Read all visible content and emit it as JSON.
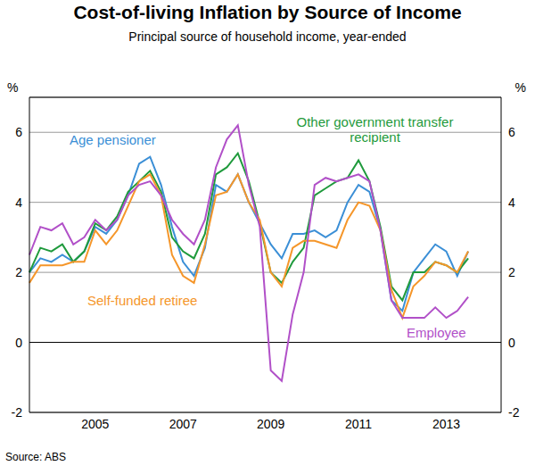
{
  "chart_data": {
    "type": "line",
    "title": "Cost-of-living Inflation by Source of Income",
    "subtitle": "Principal source of household income, year-ended",
    "ylabel": "%",
    "source": "Source: ABS",
    "categories": [
      null,
      null,
      null,
      null,
      null,
      null,
      "2005",
      null,
      null,
      null,
      null,
      null,
      null,
      null,
      "2007",
      null,
      null,
      null,
      null,
      null,
      null,
      null,
      "2009",
      null,
      null,
      null,
      null,
      null,
      null,
      null,
      "2011",
      null,
      null,
      null,
      null,
      null,
      null,
      null,
      "2013",
      null,
      null,
      null,
      null,
      null
    ],
    "ylim": [
      -2,
      7
    ],
    "yticks": [
      -2,
      0,
      2,
      4,
      6
    ],
    "grid": true,
    "series": [
      {
        "name": "Age pensioner",
        "color": "#3b8fd6",
        "values": [
          2.0,
          2.4,
          2.3,
          2.5,
          2.3,
          2.6,
          3.3,
          3.1,
          3.5,
          4.2,
          5.1,
          5.3,
          4.5,
          3.3,
          2.3,
          1.9,
          2.7,
          4.5,
          4.3,
          4.8,
          4.0,
          3.4,
          2.8,
          2.4,
          3.1,
          3.1,
          3.2,
          3.0,
          3.2,
          4.0,
          4.5,
          4.3,
          3.2,
          1.2,
          0.9,
          2.0,
          2.4,
          2.8,
          2.6,
          1.9,
          2.6,
          null,
          null,
          null
        ]
      },
      {
        "name": "Other government transfer recipient",
        "color": "#1f9a3c",
        "values": [
          2.0,
          2.7,
          2.6,
          2.8,
          2.3,
          2.6,
          3.4,
          3.2,
          3.6,
          4.3,
          4.6,
          4.9,
          4.3,
          3.0,
          2.6,
          2.4,
          3.1,
          4.8,
          5.0,
          5.4,
          4.6,
          3.4,
          2.0,
          1.7,
          2.3,
          2.7,
          4.2,
          4.4,
          4.6,
          4.7,
          5.2,
          4.6,
          3.3,
          1.6,
          1.2,
          2.0,
          2.0,
          2.3,
          2.2,
          2.0,
          2.4,
          null,
          null,
          null
        ]
      },
      {
        "name": "Self-funded retiree",
        "color": "#f5962a",
        "values": [
          1.7,
          2.2,
          2.2,
          2.2,
          2.3,
          2.3,
          3.2,
          2.8,
          3.2,
          3.9,
          4.6,
          4.8,
          4.2,
          2.5,
          1.9,
          1.7,
          2.8,
          4.2,
          4.3,
          4.8,
          4.0,
          3.5,
          2.0,
          1.6,
          2.7,
          2.9,
          2.9,
          2.8,
          2.7,
          3.5,
          4.0,
          3.9,
          3.2,
          1.5,
          0.7,
          1.6,
          1.9,
          2.3,
          2.2,
          2.0,
          2.6,
          null,
          null,
          null
        ]
      },
      {
        "name": "Employee",
        "color": "#b150c8",
        "values": [
          2.5,
          3.3,
          3.2,
          3.4,
          2.8,
          3.0,
          3.5,
          3.2,
          3.5,
          4.2,
          4.5,
          4.6,
          4.2,
          3.5,
          3.1,
          2.8,
          3.5,
          5.0,
          5.8,
          6.2,
          4.5,
          3.3,
          -0.8,
          -1.1,
          0.8,
          2.0,
          4.5,
          4.7,
          4.6,
          4.7,
          4.8,
          4.6,
          3.2,
          1.2,
          0.7,
          0.7,
          0.7,
          1.0,
          0.7,
          0.9,
          1.3,
          null,
          null,
          null
        ]
      }
    ]
  }
}
